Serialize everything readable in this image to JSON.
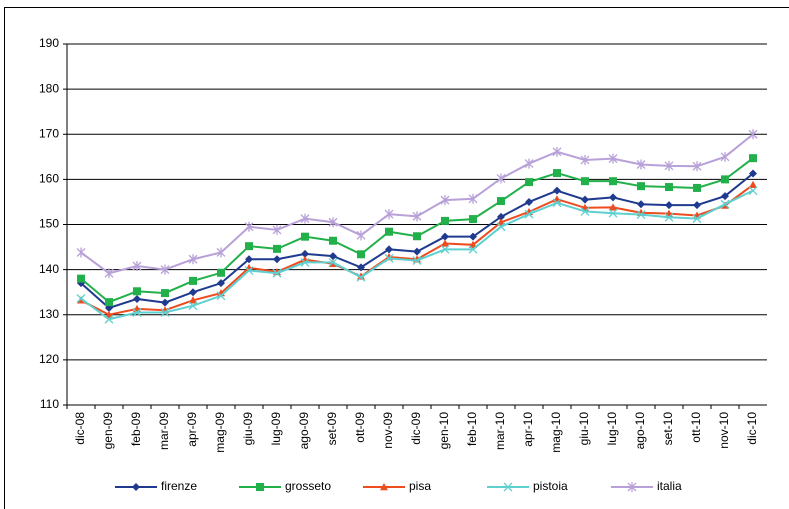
{
  "chart_data": {
    "type": "line",
    "categories": [
      "dic-08",
      "gen-09",
      "feb-09",
      "mar-09",
      "apr-09",
      "mag-09",
      "giu-09",
      "lug-09",
      "ago-09",
      "set-09",
      "ott-09",
      "nov-09",
      "dic-09",
      "gen-10",
      "feb-10",
      "mar-10",
      "apr-10",
      "mag-10",
      "giu-10",
      "lug-10",
      "ago-10",
      "set-10",
      "ott-10",
      "nov-10",
      "dic-10"
    ],
    "series": [
      {
        "name": "firenze",
        "color": "#1f3a8f",
        "marker": "diamond",
        "values": [
          137,
          131.5,
          133.5,
          132.7,
          135,
          137,
          142.3,
          142.3,
          143.5,
          143,
          140.5,
          144.5,
          144,
          147.3,
          147.3,
          151.7,
          155,
          157.5,
          155.5,
          156,
          154.5,
          154.3,
          154.3,
          156.3,
          161.3
        ]
      },
      {
        "name": "grosseto",
        "color": "#22b04a",
        "marker": "square",
        "values": [
          138,
          132.8,
          135.2,
          134.8,
          137.5,
          139.3,
          145.2,
          144.6,
          147.3,
          146.4,
          143.4,
          148.4,
          147.4,
          150.8,
          151.2,
          155.2,
          159.4,
          161.4,
          159.6,
          159.6,
          158.5,
          158.3,
          158.1,
          160,
          164.7
        ]
      },
      {
        "name": "pisa",
        "color": "#ee4b1f",
        "marker": "triangle",
        "values": [
          133.2,
          130,
          131.3,
          131,
          133.2,
          134.8,
          140.4,
          139.5,
          142.2,
          141.3,
          138.5,
          142.8,
          142.3,
          145.8,
          145.5,
          150.5,
          152.8,
          155.6,
          153.7,
          153.8,
          152.6,
          152.4,
          152,
          154.2,
          158.8
        ]
      },
      {
        "name": "pistoia",
        "color": "#5ed0d0",
        "marker": "x",
        "values": [
          133.6,
          129,
          130.5,
          130.5,
          132,
          134.2,
          139.8,
          139.2,
          141.6,
          141.6,
          138.3,
          142.5,
          142,
          144.5,
          144.5,
          149.5,
          152.3,
          154.8,
          152.9,
          152.5,
          152.2,
          151.6,
          151.3,
          154.5,
          157.5
        ]
      },
      {
        "name": "italia",
        "color": "#b8a0d8",
        "marker": "star",
        "values": [
          143.8,
          139.2,
          140.8,
          140,
          142.3,
          143.8,
          149.5,
          148.8,
          151.3,
          150.5,
          147.6,
          152.3,
          151.8,
          155.4,
          155.7,
          160.2,
          163.5,
          166.1,
          164.3,
          164.6,
          163.3,
          163,
          162.9,
          165,
          170
        ]
      }
    ],
    "ylim": [
      110,
      190
    ],
    "yticks": [
      110,
      120,
      130,
      140,
      150,
      160,
      170,
      180,
      190
    ],
    "grid": true,
    "legend": "bottom"
  }
}
